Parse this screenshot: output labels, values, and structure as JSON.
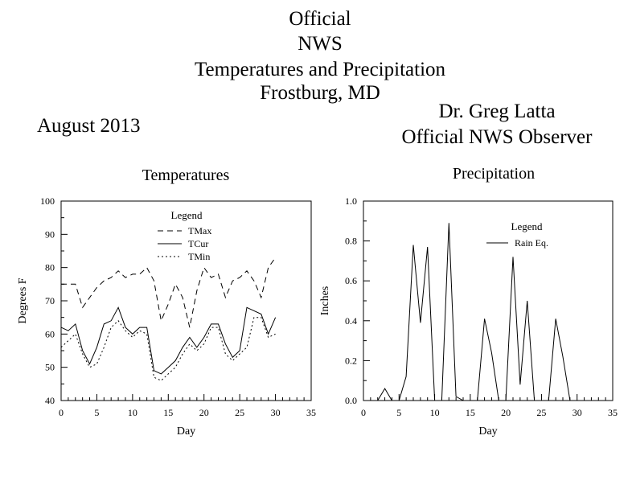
{
  "header": {
    "title_lines": [
      "Official",
      "NWS",
      "Temperatures and Precipitation",
      "Frostburg, MD"
    ],
    "month": "August 2013",
    "observer_name": "Dr. Greg Latta",
    "observer_role": "Official NWS Observer"
  },
  "chart_data": [
    {
      "type": "line",
      "title": "Temperatures",
      "xlabel": "Day",
      "ylabel": "Degrees F",
      "xlim": [
        0,
        35
      ],
      "ylim": [
        40,
        100
      ],
      "xticks": [
        0,
        5,
        10,
        15,
        20,
        25,
        30,
        35
      ],
      "yticks": [
        40,
        50,
        60,
        70,
        80,
        90,
        100
      ],
      "grid": false,
      "legend": {
        "title": "Legend",
        "placement": "top-center"
      },
      "x": [
        0,
        1,
        2,
        3,
        4,
        5,
        6,
        7,
        8,
        9,
        10,
        11,
        12,
        13,
        14,
        15,
        16,
        17,
        18,
        19,
        20,
        21,
        22,
        23,
        24,
        25,
        26,
        27,
        28,
        29,
        30
      ],
      "series": [
        {
          "name": "TMax",
          "style": "dashed",
          "values": [
            75,
            75,
            75,
            68,
            71,
            74,
            76,
            77,
            79,
            77,
            78,
            78,
            80,
            76,
            64,
            69,
            75,
            71,
            62,
            73,
            80,
            77,
            78,
            71,
            76,
            77,
            79,
            76,
            71,
            80,
            83
          ]
        },
        {
          "name": "TCur",
          "style": "solid",
          "values": [
            62,
            61,
            63,
            55,
            51,
            56,
            63,
            64,
            68,
            62,
            60,
            62,
            62,
            49,
            48,
            50,
            52,
            56,
            59,
            56,
            59,
            63,
            63,
            57,
            53,
            55,
            68,
            67,
            66,
            60,
            65
          ]
        },
        {
          "name": "TMin",
          "style": "dotted",
          "values": [
            56,
            58,
            60,
            54,
            50,
            51,
            56,
            62,
            64,
            61,
            59,
            61,
            60,
            47,
            46,
            48,
            50,
            54,
            57,
            55,
            57,
            62,
            62,
            54,
            52,
            54,
            56,
            65,
            65,
            59,
            60
          ]
        }
      ]
    },
    {
      "type": "line",
      "title": "Precipitation",
      "xlabel": "Day",
      "ylabel": "Inches",
      "xlim": [
        0,
        35
      ],
      "ylim": [
        0,
        1.0
      ],
      "xticks": [
        0,
        5,
        10,
        15,
        20,
        25,
        30,
        35
      ],
      "yticks": [
        0.0,
        0.2,
        0.4,
        0.6,
        0.8,
        1.0
      ],
      "grid": false,
      "legend": {
        "title": "Legend",
        "placement": "top-center"
      },
      "x": [
        1,
        2,
        3,
        4,
        5,
        6,
        7,
        8,
        9,
        10,
        11,
        12,
        13,
        14,
        15,
        16,
        17,
        18,
        19,
        20,
        21,
        22,
        23,
        24,
        25,
        26,
        27,
        28,
        29,
        30,
        31
      ],
      "series": [
        {
          "name": "Rain Eq.",
          "style": "solid",
          "values": [
            0,
            0,
            0.06,
            0,
            0,
            0.12,
            0.78,
            0.39,
            0.77,
            0,
            0,
            0.89,
            0.02,
            0,
            0,
            0,
            0.41,
            0.24,
            0,
            0,
            0.72,
            0.08,
            0.5,
            0,
            0,
            0,
            0.41,
            0.22,
            0,
            0,
            0
          ]
        }
      ]
    }
  ]
}
